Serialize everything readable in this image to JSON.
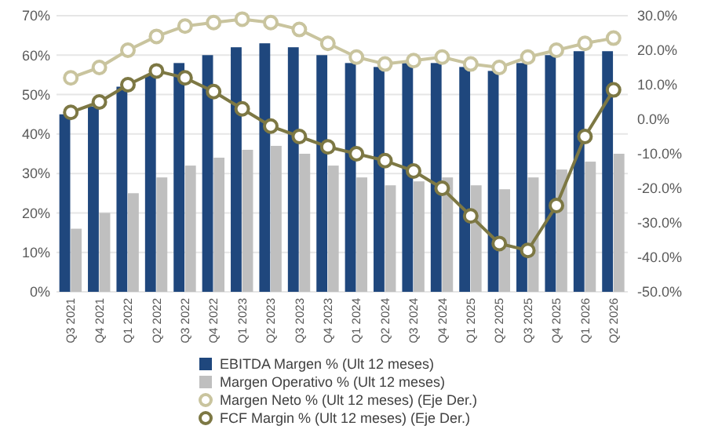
{
  "chart_data": {
    "type": "bar",
    "categories": [
      "Q3 2021",
      "Q4 2021",
      "Q1 2022",
      "Q2 2022",
      "Q3 2022",
      "Q4 2022",
      "Q1 2023",
      "Q2 2023",
      "Q3 2023",
      "Q4 2023",
      "Q1 2024",
      "Q2 2024",
      "Q3 2024",
      "Q4 2024",
      "Q1 2025",
      "Q2 2025",
      "Q3 2025",
      "Q4 2025",
      "Q1 2026",
      "Q2 2026"
    ],
    "series": [
      {
        "name": "EBITDA Margen % (Ult 12 meses)",
        "color": "#1f477d",
        "values": [
          45,
          47,
          52,
          55,
          58,
          60,
          62,
          63,
          62,
          60,
          58,
          57,
          58,
          58,
          57,
          56,
          58,
          60,
          61,
          61
        ]
      },
      {
        "name": "Margen Operativo % (Ult 12 meses)",
        "color": "#bfbfbf",
        "values": [
          16,
          20,
          25,
          29,
          32,
          34,
          36,
          37,
          35,
          32,
          29,
          27,
          28,
          29,
          27,
          26,
          29,
          31,
          33,
          35
        ]
      },
      {
        "name": "Margen Neto % (Ult 12 meses) (Eje Der.)",
        "type": "line",
        "axis": "y2",
        "color": "#c9c49e",
        "values": [
          12,
          15,
          20,
          24,
          27,
          28,
          29,
          28,
          26,
          22,
          18,
          16,
          17,
          18,
          16,
          15,
          18,
          20,
          22,
          23.5
        ]
      },
      {
        "name": "FCF Margin % (Ult 12 meses) (Eje Der.)",
        "type": "line",
        "axis": "y2",
        "color": "#7d7844",
        "values": [
          2,
          5,
          10,
          14,
          12,
          8,
          3,
          -2,
          -5,
          -8,
          -10,
          -12,
          -15,
          -20,
          -28,
          -36,
          -38,
          -25,
          -5,
          8.5
        ]
      }
    ],
    "ylim": [
      0,
      70
    ],
    "yticks": [
      {
        "value": 0,
        "label": "0%"
      },
      {
        "value": 10,
        "label": "10%"
      },
      {
        "value": 20,
        "label": "20%"
      },
      {
        "value": 30,
        "label": "30%"
      },
      {
        "value": 40,
        "label": "40%"
      },
      {
        "value": 50,
        "label": "50%"
      },
      {
        "value": 60,
        "label": "60%"
      },
      {
        "value": 70,
        "label": "70%"
      }
    ],
    "y2lim": [
      -50,
      30
    ],
    "y2ticks": [
      {
        "value": -50,
        "label": "-50.0%"
      },
      {
        "value": -40,
        "label": "-40.0%"
      },
      {
        "value": -30,
        "label": "-30.0%"
      },
      {
        "value": -20,
        "label": "-20.0%"
      },
      {
        "value": -10,
        "label": "-10.0%"
      },
      {
        "value": 0,
        "label": "0.0%"
      },
      {
        "value": 10,
        "label": "10.0%"
      },
      {
        "value": 20,
        "label": "20.0%"
      },
      {
        "value": 30,
        "label": "30.0%"
      }
    ],
    "grid": "y",
    "legend": "bottom",
    "marker": "circle"
  }
}
